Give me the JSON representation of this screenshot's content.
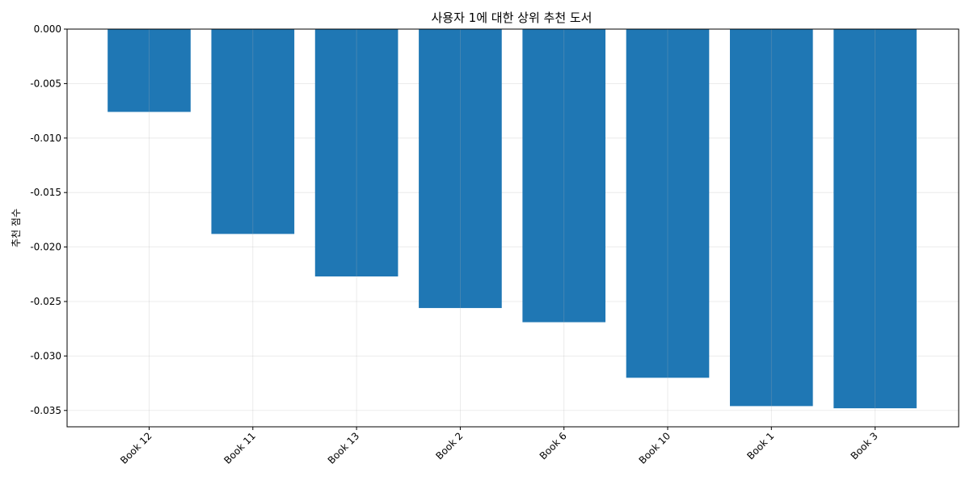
{
  "chart_data": {
    "type": "bar",
    "title": "사용자 1에 대한 상위 추천 도서",
    "xlabel": "",
    "ylabel": "추천 점수",
    "categories": [
      "Book 12",
      "Book 11",
      "Book 13",
      "Book 2",
      "Book 6",
      "Book 10",
      "Book 1",
      "Book 3"
    ],
    "values": [
      -0.0076,
      -0.0188,
      -0.0227,
      -0.0256,
      -0.0269,
      -0.032,
      -0.0346,
      -0.0348
    ],
    "ylim": [
      -0.0365,
      0.0
    ],
    "yticks": [
      "0.000",
      "-0.005",
      "-0.010",
      "-0.015",
      "-0.020",
      "-0.025",
      "-0.030",
      "-0.035"
    ],
    "ytick_values": [
      0.0,
      -0.005,
      -0.01,
      -0.015,
      -0.02,
      -0.025,
      -0.03,
      -0.035
    ],
    "grid": true,
    "bar_color": "#1f77b4"
  }
}
